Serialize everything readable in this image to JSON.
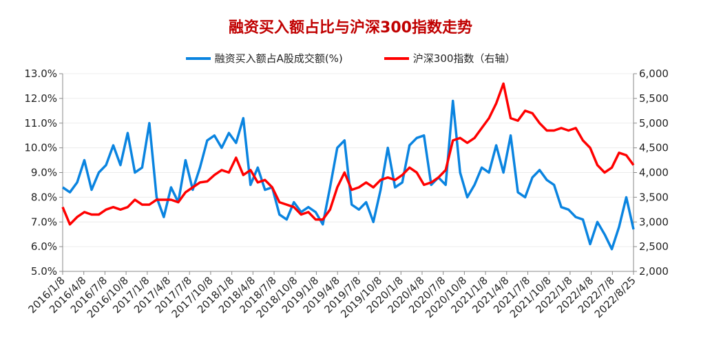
{
  "chart_data": {
    "type": "line",
    "title": "融资买入额占比与沪深300指数走势",
    "legend_position": "top",
    "grid": true,
    "y_left": {
      "ticks": [
        "5.0%",
        "6.0%",
        "7.0%",
        "8.0%",
        "9.0%",
        "10.0%",
        "11.0%",
        "12.0%",
        "13.0%"
      ],
      "range": [
        5,
        13
      ],
      "unit": "%"
    },
    "y_right": {
      "ticks": [
        "2,000",
        "2,500",
        "3,000",
        "3,500",
        "4,000",
        "4,500",
        "5,000",
        "5,500",
        "6,000"
      ],
      "range": [
        2000,
        6000
      ]
    },
    "x_ticks": [
      "2016/1/8",
      "2016/4/8",
      "2016/7/8",
      "2016/10/8",
      "2017/1/8",
      "2017/4/8",
      "2017/7/8",
      "2017/10/8",
      "2018/1/8",
      "2018/4/8",
      "2018/7/8",
      "2018/10/8",
      "2019/1/8",
      "2019/4/8",
      "2019/7/8",
      "2019/10/8",
      "2020/1/8",
      "2020/4/8",
      "2020/7/8",
      "2020/10/8",
      "2021/1/8",
      "2021/4/8",
      "2021/7/8",
      "2021/10/8",
      "2022/1/8",
      "2022/4/8",
      "2022/7/8",
      "2022/8/25"
    ],
    "x_months": [
      "2016-01",
      "2016-02",
      "2016-03",
      "2016-04",
      "2016-05",
      "2016-06",
      "2016-07",
      "2016-08",
      "2016-09",
      "2016-10",
      "2016-11",
      "2016-12",
      "2017-01",
      "2017-02",
      "2017-03",
      "2017-04",
      "2017-05",
      "2017-06",
      "2017-07",
      "2017-08",
      "2017-09",
      "2017-10",
      "2017-11",
      "2017-12",
      "2018-01",
      "2018-02",
      "2018-03",
      "2018-04",
      "2018-05",
      "2018-06",
      "2018-07",
      "2018-08",
      "2018-09",
      "2018-10",
      "2018-11",
      "2018-12",
      "2019-01",
      "2019-02",
      "2019-03",
      "2019-04",
      "2019-05",
      "2019-06",
      "2019-07",
      "2019-08",
      "2019-09",
      "2019-10",
      "2019-11",
      "2019-12",
      "2020-01",
      "2020-02",
      "2020-03",
      "2020-04",
      "2020-05",
      "2020-06",
      "2020-07",
      "2020-08",
      "2020-09",
      "2020-10",
      "2020-11",
      "2020-12",
      "2021-01",
      "2021-02",
      "2021-03",
      "2021-04",
      "2021-05",
      "2021-06",
      "2021-07",
      "2021-08",
      "2021-09",
      "2021-10",
      "2021-11",
      "2021-12",
      "2022-01",
      "2022-02",
      "2022-03",
      "2022-04",
      "2022-05",
      "2022-06",
      "2022-07",
      "2022-08"
    ],
    "series": [
      {
        "name": "融资买入额占A股成交额(%)",
        "axis": "left",
        "color": "#0A84E0",
        "values": [
          8.4,
          8.2,
          8.6,
          9.5,
          8.3,
          9.0,
          9.3,
          10.1,
          9.3,
          10.6,
          9.0,
          9.2,
          11.0,
          8.0,
          7.2,
          8.4,
          7.8,
          9.5,
          8.3,
          9.2,
          10.3,
          10.5,
          10.0,
          10.6,
          10.2,
          11.2,
          8.5,
          9.2,
          8.3,
          8.4,
          7.3,
          7.1,
          7.8,
          7.4,
          7.6,
          7.4,
          6.9,
          8.4,
          10.0,
          10.3,
          7.7,
          7.5,
          7.8,
          7.0,
          8.3,
          10.0,
          8.4,
          8.6,
          10.1,
          10.4,
          10.5,
          8.5,
          8.8,
          8.5,
          11.9,
          9.0,
          8.0,
          8.5,
          9.2,
          9.0,
          10.1,
          9.0,
          10.5,
          8.2,
          8.0,
          8.8,
          9.1,
          8.7,
          8.5,
          7.6,
          7.5,
          7.2,
          7.1,
          6.1,
          7.0,
          6.5,
          5.9,
          6.8,
          8.0,
          6.7
        ]
      },
      {
        "name": "沪深300指数（右轴）",
        "axis": "right",
        "color": "#FF0000",
        "values": [
          3300,
          2950,
          3100,
          3200,
          3150,
          3150,
          3250,
          3300,
          3250,
          3300,
          3450,
          3350,
          3350,
          3450,
          3450,
          3450,
          3400,
          3600,
          3700,
          3800,
          3820,
          3950,
          4050,
          4000,
          4300,
          3950,
          4050,
          3800,
          3850,
          3700,
          3400,
          3350,
          3300,
          3150,
          3200,
          3050,
          3050,
          3250,
          3700,
          4000,
          3650,
          3700,
          3800,
          3700,
          3850,
          3900,
          3850,
          3950,
          4100,
          4000,
          3750,
          3800,
          3900,
          4050,
          4650,
          4700,
          4600,
          4700,
          4900,
          5100,
          5400,
          5800,
          5100,
          5050,
          5250,
          5200,
          5000,
          4850,
          4850,
          4900,
          4850,
          4900,
          4650,
          4500,
          4150,
          4000,
          4100,
          4400,
          4350,
          4150
        ]
      }
    ]
  }
}
